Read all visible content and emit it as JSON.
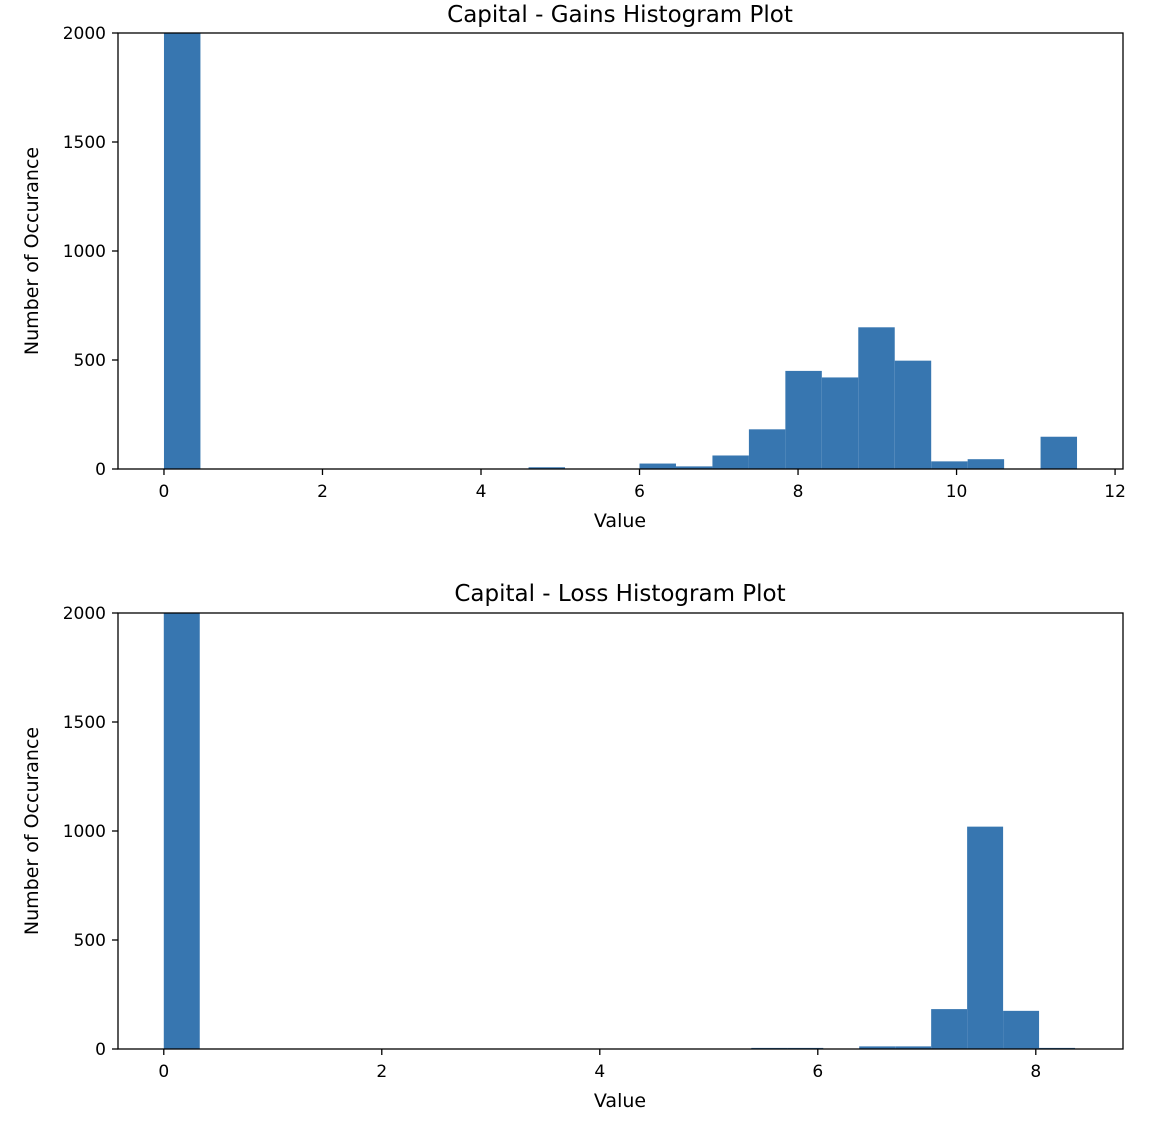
{
  "chart_data": [
    {
      "type": "bar",
      "title": "Capital - Gains Histogram Plot",
      "xlabel": "Value",
      "ylabel": "Number of Occurance",
      "xlim": [
        -0.58,
        12.1
      ],
      "ylim": [
        0,
        2000
      ],
      "x_ticks": [
        0,
        2,
        4,
        6,
        8,
        10,
        12
      ],
      "x_tick_labels": [
        "0",
        "2",
        "4",
        "6",
        "8",
        "10",
        "12"
      ],
      "y_ticks": [
        0,
        500,
        1000,
        1500,
        2000
      ],
      "y_tick_labels": [
        "0",
        "500",
        "1000",
        "1500",
        "2000"
      ],
      "color": "#3776b0",
      "bins": [
        {
          "x0": 0.0,
          "x1": 0.46,
          "count": 2000
        },
        {
          "x0": 4.6,
          "x1": 5.06,
          "count": 8
        },
        {
          "x0": 6.0,
          "x1": 6.46,
          "count": 25
        },
        {
          "x0": 6.46,
          "x1": 6.92,
          "count": 12
        },
        {
          "x0": 6.92,
          "x1": 7.38,
          "count": 62
        },
        {
          "x0": 7.38,
          "x1": 7.84,
          "count": 182
        },
        {
          "x0": 7.84,
          "x1": 8.3,
          "count": 450
        },
        {
          "x0": 8.3,
          "x1": 8.76,
          "count": 420
        },
        {
          "x0": 8.76,
          "x1": 9.22,
          "count": 650
        },
        {
          "x0": 9.22,
          "x1": 9.68,
          "count": 497
        },
        {
          "x0": 9.68,
          "x1": 10.14,
          "count": 35
        },
        {
          "x0": 10.14,
          "x1": 10.6,
          "count": 45
        },
        {
          "x0": 11.06,
          "x1": 11.52,
          "count": 148
        }
      ]
    },
    {
      "type": "bar",
      "title": "Capital - Loss Histogram Plot",
      "xlabel": "Value",
      "ylabel": "Number of Occurance",
      "xlim": [
        -0.42,
        8.8
      ],
      "ylim": [
        0,
        2000
      ],
      "x_ticks": [
        0,
        2,
        4,
        6,
        8
      ],
      "x_tick_labels": [
        "0",
        "2",
        "4",
        "6",
        "8"
      ],
      "y_ticks": [
        0,
        500,
        1000,
        1500,
        2000
      ],
      "y_tick_labels": [
        "0",
        "500",
        "1000",
        "1500",
        "2000"
      ],
      "color": "#3776b0",
      "bins": [
        {
          "x0": 0.0,
          "x1": 0.33,
          "count": 2000
        },
        {
          "x0": 5.39,
          "x1": 5.72,
          "count": 5
        },
        {
          "x0": 5.72,
          "x1": 6.05,
          "count": 5
        },
        {
          "x0": 6.38,
          "x1": 6.71,
          "count": 12
        },
        {
          "x0": 6.71,
          "x1": 7.04,
          "count": 12
        },
        {
          "x0": 7.04,
          "x1": 7.37,
          "count": 183
        },
        {
          "x0": 7.37,
          "x1": 7.7,
          "count": 1020
        },
        {
          "x0": 7.7,
          "x1": 8.03,
          "count": 175
        },
        {
          "x0": 8.03,
          "x1": 8.36,
          "count": 5
        }
      ]
    }
  ]
}
